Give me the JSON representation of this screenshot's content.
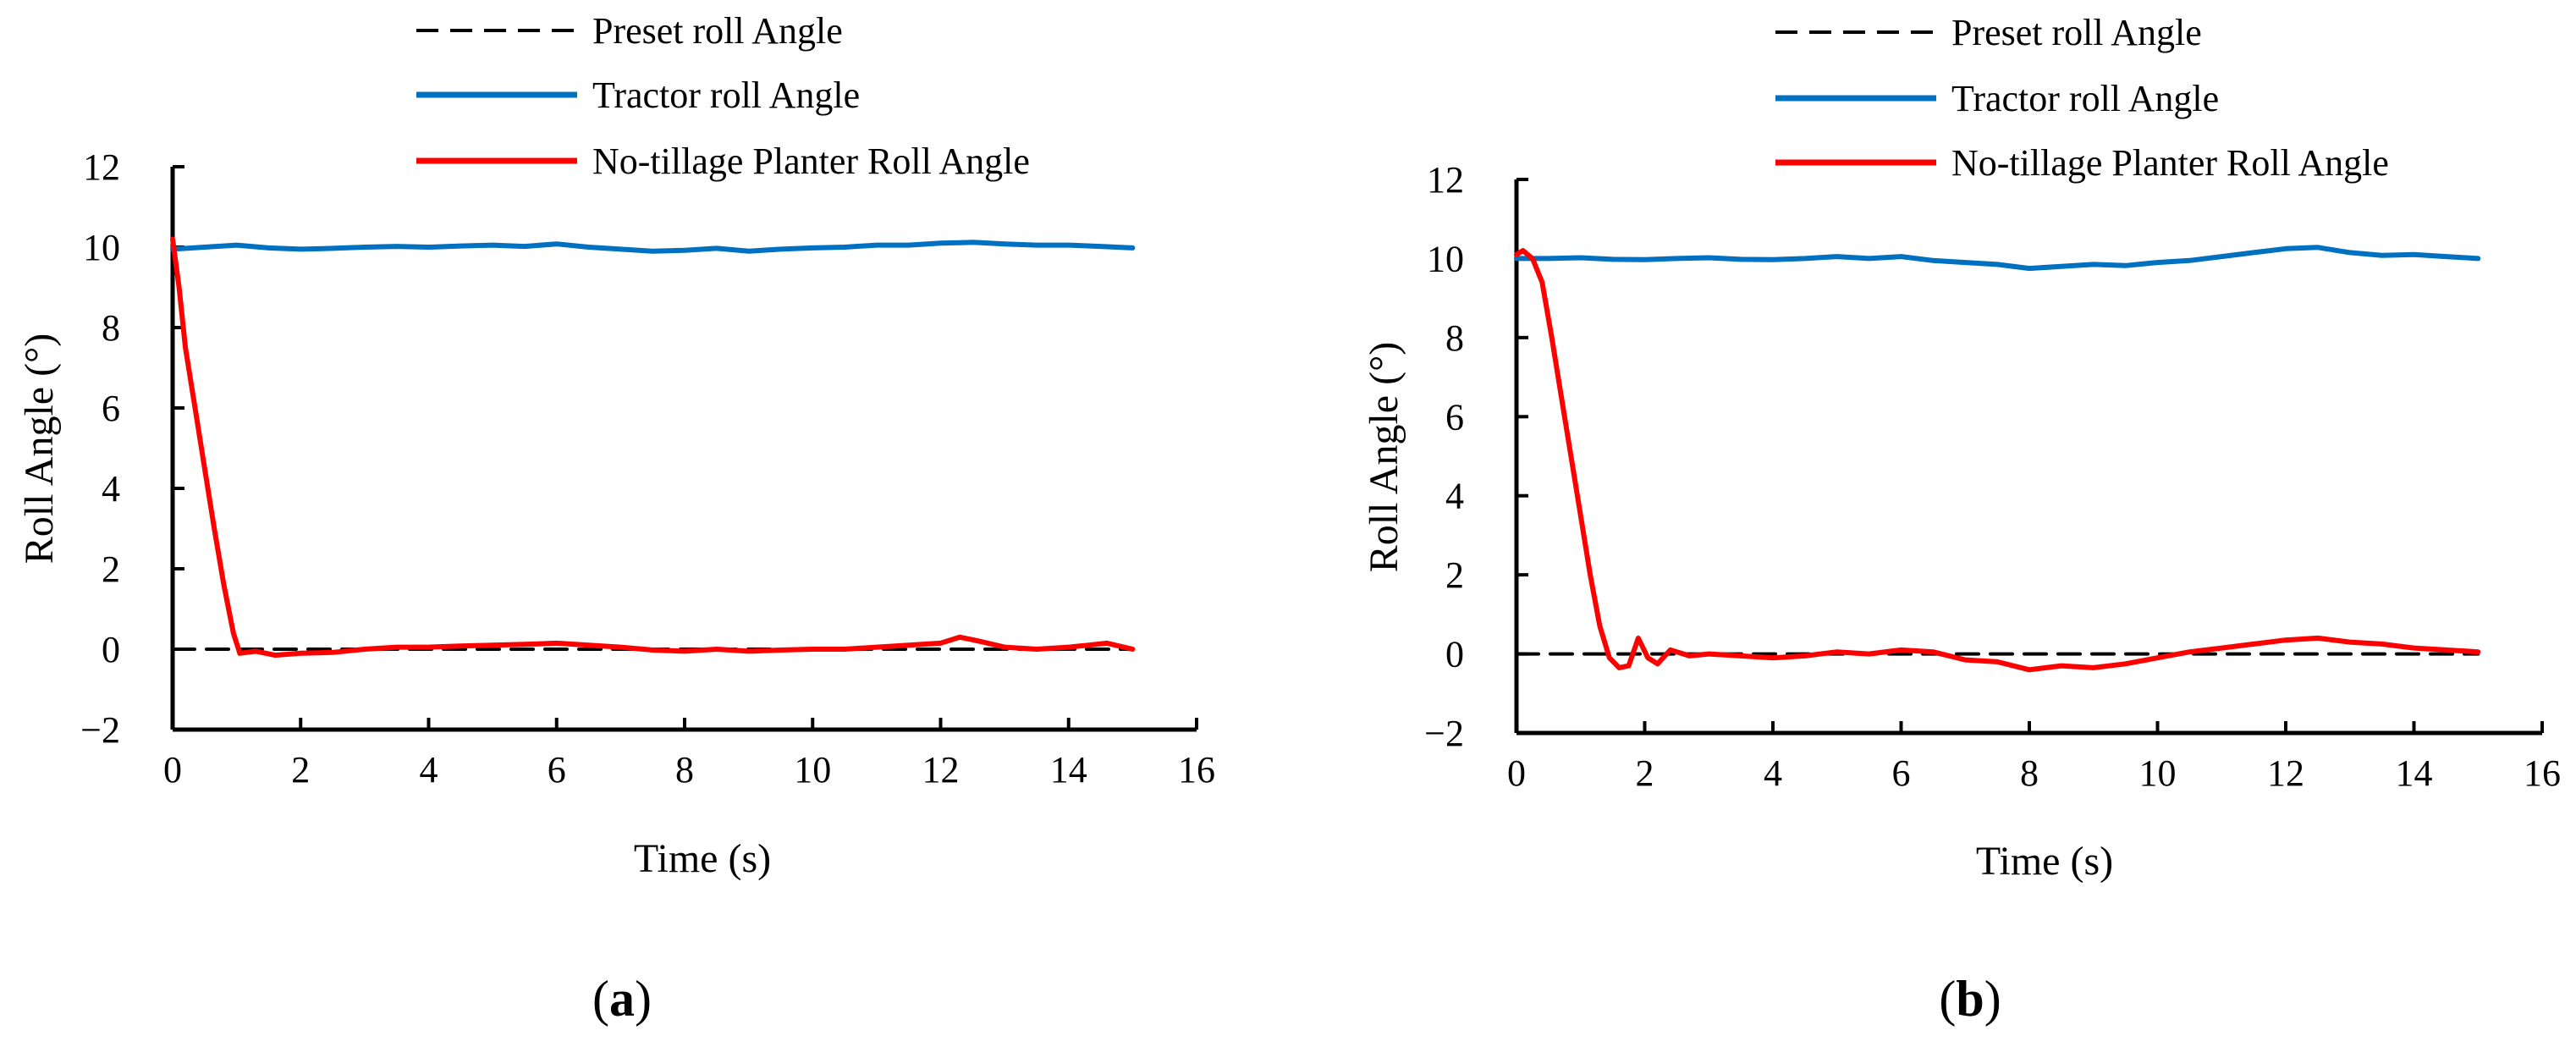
{
  "chart_data": [
    {
      "type": "line",
      "panel": "a",
      "panel_label": "a",
      "xlabel": "Time (s)",
      "ylabel": "Roll Angle (°)",
      "xlim": [
        0,
        16
      ],
      "ylim": [
        -2,
        12
      ],
      "xticks": [
        0,
        2,
        4,
        6,
        8,
        10,
        12,
        14,
        16
      ],
      "yticks": [
        -2,
        0,
        2,
        4,
        6,
        8,
        10,
        12
      ],
      "xtick_labels": [
        "0",
        "2",
        "4",
        "6",
        "8",
        "10",
        "12",
        "14",
        "16"
      ],
      "ytick_labels": [
        "−2",
        "0",
        "2",
        "4",
        "6",
        "8",
        "10",
        "12"
      ],
      "legend": [
        "Preset roll Angle",
        "Tractor roll Angle",
        "No-tillage Planter Roll Angle"
      ],
      "series": [
        {
          "name": "Preset roll Angle",
          "color": "#000000",
          "style": "dashed",
          "x": [
            0,
            15
          ],
          "y": [
            0,
            0
          ]
        },
        {
          "name": "Tractor roll Angle",
          "color": "#0070C0",
          "style": "solid",
          "x": [
            0,
            0.5,
            1,
            1.5,
            2,
            2.5,
            3,
            3.5,
            4,
            4.5,
            5,
            5.5,
            6,
            6.5,
            7,
            7.5,
            8,
            8.5,
            9,
            9.5,
            10,
            10.5,
            11,
            11.5,
            12,
            12.5,
            13,
            13.5,
            14,
            14.5,
            15
          ],
          "y": [
            9.95,
            10.0,
            10.05,
            9.98,
            9.95,
            9.97,
            10.0,
            10.02,
            10.0,
            10.03,
            10.05,
            10.02,
            10.08,
            10.0,
            9.95,
            9.9,
            9.92,
            9.97,
            9.9,
            9.95,
            9.98,
            10.0,
            10.05,
            10.05,
            10.1,
            10.12,
            10.08,
            10.05,
            10.05,
            10.02,
            9.98
          ]
        },
        {
          "name": "No-tillage Planter Roll Angle",
          "color": "#FF0000",
          "style": "solid",
          "x": [
            0,
            0.1,
            0.2,
            0.35,
            0.5,
            0.65,
            0.8,
            0.95,
            1.05,
            1.3,
            1.6,
            2.0,
            2.5,
            3.0,
            3.5,
            4.0,
            4.5,
            5.0,
            5.5,
            6.0,
            6.5,
            7.0,
            7.5,
            8.0,
            8.5,
            9.0,
            9.5,
            10.0,
            10.5,
            11.0,
            11.5,
            12.0,
            12.3,
            12.6,
            13.0,
            13.5,
            14.0,
            14.3,
            14.6,
            15.0
          ],
          "y": [
            10.2,
            9.0,
            7.5,
            6.0,
            4.5,
            3.0,
            1.6,
            0.4,
            -0.1,
            -0.05,
            -0.15,
            -0.1,
            -0.08,
            0.0,
            0.05,
            0.05,
            0.08,
            0.1,
            0.12,
            0.15,
            0.1,
            0.05,
            -0.02,
            -0.05,
            0.0,
            -0.05,
            -0.02,
            0.0,
            0.0,
            0.05,
            0.1,
            0.15,
            0.3,
            0.2,
            0.05,
            0.0,
            0.05,
            0.1,
            0.15,
            0.0
          ]
        }
      ]
    },
    {
      "type": "line",
      "panel": "b",
      "panel_label": "b",
      "xlabel": "Time (s)",
      "ylabel": "Roll Angle (°)",
      "xlim": [
        0,
        16
      ],
      "ylim": [
        -2,
        12
      ],
      "xticks": [
        0,
        2,
        4,
        6,
        8,
        10,
        12,
        14,
        16
      ],
      "yticks": [
        -2,
        0,
        2,
        4,
        6,
        8,
        10,
        12
      ],
      "xtick_labels": [
        "0",
        "2",
        "4",
        "6",
        "8",
        "10",
        "12",
        "14",
        "16"
      ],
      "ytick_labels": [
        "−2",
        "0",
        "2",
        "4",
        "6",
        "8",
        "10",
        "12"
      ],
      "legend": [
        "Preset roll Angle",
        "Tractor roll Angle",
        "No-tillage Planter Roll Angle"
      ],
      "series": [
        {
          "name": "Preset roll Angle",
          "color": "#000000",
          "style": "dashed",
          "x": [
            0,
            15
          ],
          "y": [
            0,
            0
          ]
        },
        {
          "name": "Tractor roll Angle",
          "color": "#0070C0",
          "style": "solid",
          "x": [
            0,
            0.5,
            1,
            1.5,
            2,
            2.5,
            3,
            3.5,
            4,
            4.5,
            5,
            5.5,
            6,
            6.5,
            7,
            7.5,
            8,
            8.5,
            9,
            9.5,
            10,
            10.5,
            11,
            11.5,
            12,
            12.5,
            13,
            13.5,
            14,
            14.5,
            15
          ],
          "y": [
            10.0,
            10.0,
            10.02,
            9.98,
            9.97,
            10.0,
            10.02,
            9.98,
            9.97,
            10.0,
            10.05,
            10.0,
            10.05,
            9.95,
            9.9,
            9.85,
            9.75,
            9.8,
            9.85,
            9.82,
            9.9,
            9.95,
            10.05,
            10.15,
            10.25,
            10.28,
            10.15,
            10.08,
            10.1,
            10.05,
            10.0
          ]
        },
        {
          "name": "No-tillage Planter Roll Angle",
          "color": "#FF0000",
          "style": "solid",
          "x": [
            0,
            0.1,
            0.25,
            0.4,
            0.55,
            0.7,
            0.85,
            1.0,
            1.15,
            1.3,
            1.45,
            1.6,
            1.75,
            1.9,
            2.05,
            2.2,
            2.4,
            2.7,
            3.0,
            3.5,
            4.0,
            4.5,
            5.0,
            5.5,
            6.0,
            6.5,
            7.0,
            7.5,
            8.0,
            8.5,
            9.0,
            9.5,
            10.0,
            10.5,
            11.0,
            11.5,
            12.0,
            12.5,
            13.0,
            13.5,
            14.0,
            14.5,
            15.0
          ],
          "y": [
            10.1,
            10.2,
            10.0,
            9.4,
            8.0,
            6.5,
            5.0,
            3.5,
            2.0,
            0.7,
            -0.1,
            -0.35,
            -0.3,
            0.4,
            -0.1,
            -0.25,
            0.1,
            -0.05,
            0.0,
            -0.05,
            -0.1,
            -0.05,
            0.05,
            0.0,
            0.1,
            0.05,
            -0.15,
            -0.2,
            -0.4,
            -0.3,
            -0.35,
            -0.25,
            -0.1,
            0.05,
            0.15,
            0.25,
            0.35,
            0.4,
            0.3,
            0.25,
            0.15,
            0.1,
            0.05
          ]
        }
      ]
    }
  ]
}
